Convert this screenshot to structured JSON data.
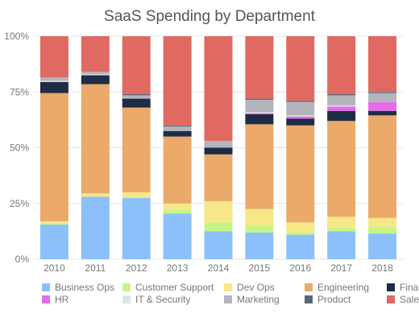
{
  "chart_data": {
    "type": "bar",
    "stacked": true,
    "normalized": true,
    "title": "SaaS Spending by Department",
    "xlabel": "",
    "ylabel": "",
    "ylim": [
      0,
      100
    ],
    "y_ticks": [
      "0%",
      "25%",
      "50%",
      "75%",
      "100%"
    ],
    "grid": true,
    "legend_position": "bottom",
    "categories": [
      "2010",
      "2011",
      "2012",
      "2013",
      "2014",
      "2015",
      "2016",
      "2017",
      "2018"
    ],
    "series": [
      {
        "name": "Business Ops",
        "color": "#8CC0FA",
        "values": [
          15.5,
          28,
          27.5,
          20.5,
          12.5,
          12,
          11,
          12.5,
          11.5
        ]
      },
      {
        "name": "Customer Support",
        "color": "#C5F585",
        "values": [
          0.5,
          0,
          0,
          1.5,
          4,
          3,
          1,
          1.5,
          3
        ]
      },
      {
        "name": "Dev Ops",
        "color": "#F7E787",
        "values": [
          1,
          1.5,
          2.5,
          3,
          9.5,
          7.5,
          4.5,
          5,
          4
        ]
      },
      {
        "name": "Engineering",
        "color": "#EBAA6A",
        "values": [
          57.5,
          49,
          38,
          30,
          21,
          38,
          43.5,
          43,
          46
        ]
      },
      {
        "name": "Finance",
        "color": "#1E2D45",
        "values": [
          5,
          4,
          4,
          2.5,
          3,
          4.5,
          3,
          4.5,
          2
        ]
      },
      {
        "name": "HR",
        "color": "#E46CE8",
        "values": [
          0,
          0,
          0,
          0,
          0,
          0.5,
          1,
          2,
          4
        ]
      },
      {
        "name": "IT & Security",
        "color": "#DDE3EA",
        "values": [
          0.5,
          0.5,
          0,
          0,
          0,
          0.5,
          0.5,
          0.5,
          0
        ]
      },
      {
        "name": "Marketing",
        "color": "#B3B5BD",
        "values": [
          1.5,
          1,
          1.5,
          2,
          3,
          5.5,
          6,
          4.5,
          4
        ]
      },
      {
        "name": "Product",
        "color": "#5B6779",
        "values": [
          0,
          0,
          0.5,
          0.5,
          0,
          0.5,
          0.5,
          0.5,
          0.5
        ]
      },
      {
        "name": "Sales",
        "color": "#E06A62",
        "values": [
          18.5,
          16,
          26,
          40,
          47,
          28,
          29,
          26,
          25
        ]
      }
    ]
  }
}
